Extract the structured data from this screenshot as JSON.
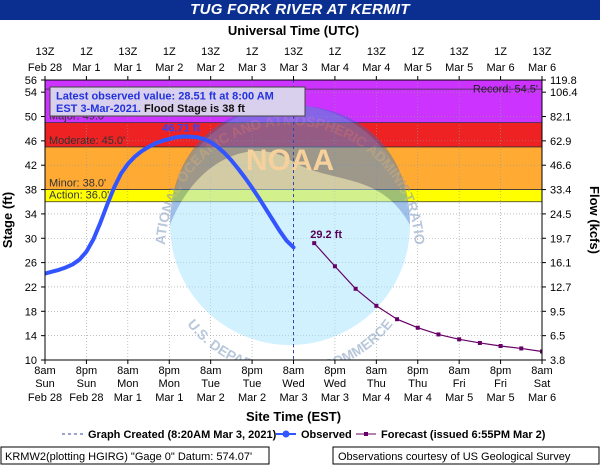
{
  "title": "TUG FORK RIVER AT KERMIT",
  "chart_data": {
    "type": "line",
    "top_axis_label": "Universal Time (UTC)",
    "top_ticks": [
      {
        "hour": 0,
        "t1": "13Z",
        "t2": "Feb 28"
      },
      {
        "hour": 12,
        "t1": "1Z",
        "t2": "Mar 1"
      },
      {
        "hour": 24,
        "t1": "13Z",
        "t2": "Mar 1"
      },
      {
        "hour": 36,
        "t1": "1Z",
        "t2": "Mar 2"
      },
      {
        "hour": 48,
        "t1": "13Z",
        "t2": "Mar 2"
      },
      {
        "hour": 60,
        "t1": "1Z",
        "t2": "Mar 3"
      },
      {
        "hour": 72,
        "t1": "13Z",
        "t2": "Mar 3"
      },
      {
        "hour": 84,
        "t1": "1Z",
        "t2": "Mar 4"
      },
      {
        "hour": 96,
        "t1": "13Z",
        "t2": "Mar 4"
      },
      {
        "hour": 108,
        "t1": "1Z",
        "t2": "Mar 5"
      },
      {
        "hour": 120,
        "t1": "13Z",
        "t2": "Mar 5"
      },
      {
        "hour": 132,
        "t1": "1Z",
        "t2": "Mar 6"
      },
      {
        "hour": 144,
        "t1": "13Z",
        "t2": "Mar 6"
      }
    ],
    "bottom_axis_label": "Site Time (EST)",
    "bottom_ticks": [
      {
        "hour": 0,
        "t1": "8am",
        "t2": "Sun",
        "t3": "Feb 28"
      },
      {
        "hour": 12,
        "t1": "8pm",
        "t2": "Sun",
        "t3": "Feb 28"
      },
      {
        "hour": 24,
        "t1": "8am",
        "t2": "Mon",
        "t3": "Mar 1"
      },
      {
        "hour": 36,
        "t1": "8pm",
        "t2": "Mon",
        "t3": "Mar 1"
      },
      {
        "hour": 48,
        "t1": "8am",
        "t2": "Tue",
        "t3": "Mar 2"
      },
      {
        "hour": 60,
        "t1": "8pm",
        "t2": "Tue",
        "t3": "Mar 2"
      },
      {
        "hour": 72,
        "t1": "8am",
        "t2": "Wed",
        "t3": "Mar 3"
      },
      {
        "hour": 84,
        "t1": "8pm",
        "t2": "Wed",
        "t3": "Mar 3"
      },
      {
        "hour": 96,
        "t1": "8am",
        "t2": "Thu",
        "t3": "Mar 4"
      },
      {
        "hour": 108,
        "t1": "8pm",
        "t2": "Thu",
        "t3": "Mar 4"
      },
      {
        "hour": 120,
        "t1": "8am",
        "t2": "Fri",
        "t3": "Mar 5"
      },
      {
        "hour": 132,
        "t1": "8pm",
        "t2": "Fri",
        "t3": "Mar 5"
      },
      {
        "hour": 144,
        "t1": "8am",
        "t2": "Sat",
        "t3": "Mar 6"
      }
    ],
    "x_range_hours": [
      0,
      144
    ],
    "y_left": {
      "label": "Stage (ft)",
      "range": [
        10,
        56
      ],
      "ticks": [
        10,
        14,
        18,
        22,
        26,
        30,
        34,
        38,
        42,
        46,
        50,
        54,
        56
      ]
    },
    "y_right": {
      "label": "Flow (kcfs)",
      "ticks": [
        {
          "stage": 10,
          "label": "3.8"
        },
        {
          "stage": 14,
          "label": "6.5"
        },
        {
          "stage": 18,
          "label": "9.5"
        },
        {
          "stage": 22,
          "label": "12.7"
        },
        {
          "stage": 26,
          "label": "16.1"
        },
        {
          "stage": 30,
          "label": "19.7"
        },
        {
          "stage": 34,
          "label": "24.5"
        },
        {
          "stage": 38,
          "label": "33.4"
        },
        {
          "stage": 42,
          "label": "46.6"
        },
        {
          "stage": 46,
          "label": "62.9"
        },
        {
          "stage": 50,
          "label": "82.1"
        },
        {
          "stage": 54,
          "label": "106.4"
        },
        {
          "stage": 56,
          "label": "119.8"
        }
      ]
    },
    "flood_categories": [
      {
        "name": "Action",
        "stage": 36,
        "label": "Action: 36.0'",
        "color": "#ffff00"
      },
      {
        "name": "Minor",
        "stage": 38,
        "label": "Minor: 38.0'",
        "color": "#ffaa33"
      },
      {
        "name": "Moderate",
        "stage": 45,
        "label": "Moderate: 45.0'",
        "color": "#ee2222"
      },
      {
        "name": "Major",
        "stage": 49,
        "label": "Major: 49.0'",
        "color": "#cc33ff"
      }
    ],
    "record": {
      "stage": 54.5,
      "label": "Record: 54.5'"
    },
    "annotation": {
      "line1": "Latest observed value: 28.51 ft at 8:00 AM",
      "line2a": "EST 3-Mar-2021.",
      "line2b": "Flood Stage is 38 ft"
    },
    "peak_label": "46.71 ft",
    "forecast_peak_label": "29.2 ft",
    "created_hour": 72,
    "series": [
      {
        "name": "Observed",
        "color": "#3355ff",
        "points": [
          [
            0,
            24.2
          ],
          [
            2,
            24.5
          ],
          [
            4,
            24.8
          ],
          [
            6,
            25.2
          ],
          [
            8,
            25.7
          ],
          [
            10,
            26.5
          ],
          [
            12,
            27.8
          ],
          [
            14,
            29.8
          ],
          [
            16,
            32.5
          ],
          [
            18,
            35.5
          ],
          [
            20,
            38.3
          ],
          [
            22,
            40.6
          ],
          [
            24,
            42.2
          ],
          [
            26,
            43.4
          ],
          [
            28,
            44.3
          ],
          [
            30,
            45.0
          ],
          [
            32,
            45.6
          ],
          [
            34,
            46.0
          ],
          [
            36,
            46.3
          ],
          [
            38,
            46.6
          ],
          [
            40,
            46.71
          ],
          [
            42,
            46.7
          ],
          [
            44,
            46.6
          ],
          [
            46,
            46.3
          ],
          [
            48,
            45.8
          ],
          [
            50,
            45.0
          ],
          [
            52,
            44.0
          ],
          [
            54,
            42.8
          ],
          [
            56,
            41.4
          ],
          [
            58,
            39.9
          ],
          [
            60,
            38.3
          ],
          [
            62,
            36.6
          ],
          [
            64,
            34.8
          ],
          [
            66,
            33.0
          ],
          [
            68,
            31.2
          ],
          [
            70,
            29.6
          ],
          [
            72,
            28.51
          ]
        ]
      },
      {
        "name": "Forecast (issued 6:55PM Mar 2)",
        "color": "#660066",
        "points": [
          [
            78,
            29.2
          ],
          [
            84,
            25.4
          ],
          [
            90,
            21.7
          ],
          [
            96,
            18.9
          ],
          [
            102,
            16.7
          ],
          [
            108,
            15.3
          ],
          [
            114,
            14.2
          ],
          [
            120,
            13.4
          ],
          [
            126,
            12.8
          ],
          [
            132,
            12.3
          ],
          [
            138,
            11.9
          ],
          [
            144,
            11.4
          ]
        ]
      }
    ],
    "legend": {
      "created": "Graph Created (8:20AM Mar 3, 2021)",
      "observed": "Observed",
      "forecast": "Forecast (issued 6:55PM Mar 2)"
    },
    "footer_left": "KRMW2(plotting HGIRG) \"Gage 0\" Datum: 574.07'",
    "footer_right": "Observations courtesy of US Geological Survey",
    "watermark": {
      "outer": "NATIONAL OCEANIC AND ATMOSPHERIC ADMINISTRATION",
      "center": "NOAA",
      "lower": "U.S. DEPARTMENT OF COMMERCE"
    }
  }
}
